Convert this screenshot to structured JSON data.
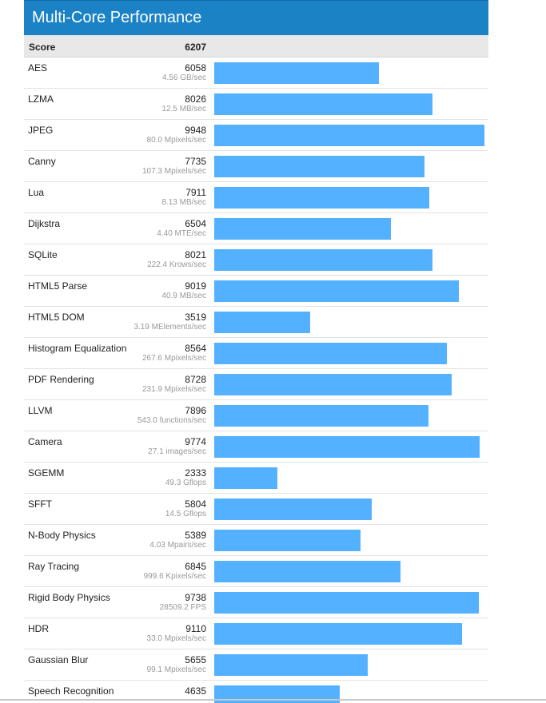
{
  "chart_data": {
    "type": "bar",
    "title": "Multi-Core Performance",
    "score_label": "Score",
    "score": 6207,
    "xlim": [
      0,
      9948
    ],
    "rows": [
      {
        "name": "AES",
        "score": 6058,
        "rate": "4.56 GB/sec"
      },
      {
        "name": "LZMA",
        "score": 8026,
        "rate": "12.5 MB/sec"
      },
      {
        "name": "JPEG",
        "score": 9948,
        "rate": "80.0 Mpixels/sec"
      },
      {
        "name": "Canny",
        "score": 7735,
        "rate": "107.3 Mpixels/sec"
      },
      {
        "name": "Lua",
        "score": 7911,
        "rate": "8.13 MB/sec"
      },
      {
        "name": "Dijkstra",
        "score": 6504,
        "rate": "4.40 MTE/sec"
      },
      {
        "name": "SQLite",
        "score": 8021,
        "rate": "222.4 Krows/sec"
      },
      {
        "name": "HTML5 Parse",
        "score": 9019,
        "rate": "40.9 MB/sec"
      },
      {
        "name": "HTML5 DOM",
        "score": 3519,
        "rate": "3.19 MElements/sec"
      },
      {
        "name": "Histogram Equalization",
        "score": 8564,
        "rate": "267.6 Mpixels/sec"
      },
      {
        "name": "PDF Rendering",
        "score": 8728,
        "rate": "231.9 Mpixels/sec"
      },
      {
        "name": "LLVM",
        "score": 7896,
        "rate": "543.0 functions/sec"
      },
      {
        "name": "Camera",
        "score": 9774,
        "rate": "27.1 images/sec"
      },
      {
        "name": "SGEMM",
        "score": 2333,
        "rate": "49.3 Gflops"
      },
      {
        "name": "SFFT",
        "score": 5804,
        "rate": "14.5 Gflops"
      },
      {
        "name": "N-Body Physics",
        "score": 5389,
        "rate": "4.03 Mpairs/sec"
      },
      {
        "name": "Ray Tracing",
        "score": 6845,
        "rate": "999.6 Kpixels/sec"
      },
      {
        "name": "Rigid Body Physics",
        "score": 9738,
        "rate": "28509.2 FPS"
      },
      {
        "name": "HDR",
        "score": 9110,
        "rate": "33.0 Mpixels/sec"
      },
      {
        "name": "Gaussian Blur",
        "score": 5655,
        "rate": "99.1 Mpixels/sec"
      },
      {
        "name": "Speech Recognition",
        "score": 4635,
        "rate": ""
      }
    ],
    "colors": {
      "header": "#1a82c5",
      "bar": "#54b1ff"
    }
  }
}
